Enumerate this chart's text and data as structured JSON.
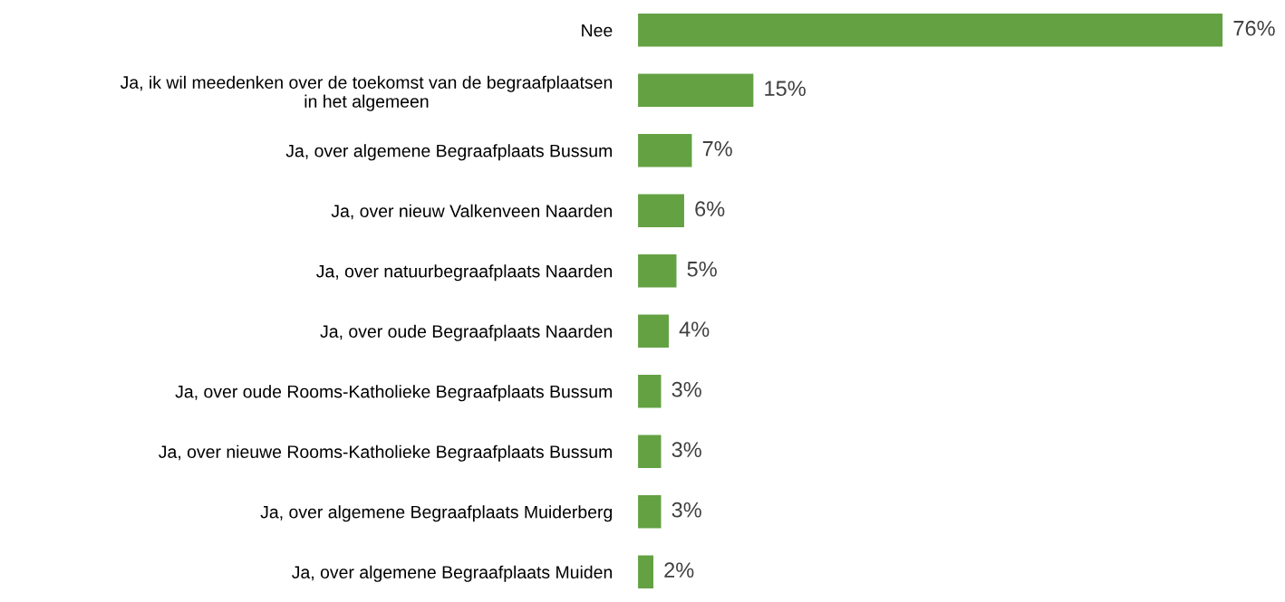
{
  "chart_data": {
    "type": "bar",
    "orientation": "horizontal",
    "categories": [
      "Nee",
      "Ja, ik wil meedenken over de toekomst van de begraafplaatsen\nin het algemeen",
      "Ja, over algemene Begraafplaats Bussum",
      "Ja, over nieuw Valkenveen Naarden",
      "Ja, over natuurbegraafplaats Naarden",
      "Ja, over oude Begraafplaats Naarden",
      "Ja, over oude Rooms-Katholieke Begraafplaats Bussum",
      "Ja, over nieuwe Rooms-Katholieke Begraafplaats Bussum",
      "Ja, over algemene Begraafplaats Muiderberg",
      "Ja, over algemene Begraafplaats Muiden"
    ],
    "values": [
      76,
      15,
      7,
      6,
      5,
      4,
      3,
      3,
      3,
      2
    ],
    "value_labels": [
      "76%",
      "15%",
      "7%",
      "6%",
      "5%",
      "4%",
      "3%",
      "3%",
      "3%",
      "2%"
    ],
    "color": "#63a143",
    "grid": false,
    "legend": false
  }
}
